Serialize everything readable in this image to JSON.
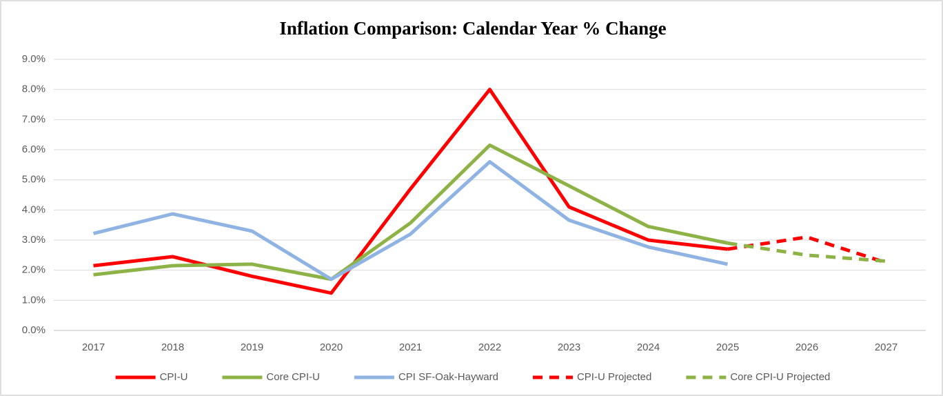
{
  "chart_data": {
    "type": "line",
    "title": "Inflation Comparison:  Calendar Year % Change",
    "categories": [
      "2017",
      "2018",
      "2019",
      "2020",
      "2021",
      "2022",
      "2023",
      "2024",
      "2025",
      "2026",
      "2027"
    ],
    "series": [
      {
        "name": "CPI-U",
        "color": "#ff0000",
        "dash": false,
        "values": [
          2.15,
          2.45,
          1.8,
          1.24,
          4.7,
          8.0,
          4.1,
          3.0,
          2.7,
          null,
          null
        ]
      },
      {
        "name": "Core CPI-U",
        "color": "#8db346",
        "dash": false,
        "values": [
          1.85,
          2.15,
          2.2,
          1.7,
          3.57,
          6.15,
          4.8,
          3.45,
          2.9,
          null,
          null
        ]
      },
      {
        "name": "CPI SF-Oak-Hayward",
        "color": "#8fb3e3",
        "dash": false,
        "values": [
          3.22,
          3.87,
          3.3,
          1.7,
          3.2,
          5.6,
          3.66,
          2.77,
          2.2,
          null,
          null
        ]
      },
      {
        "name": "CPI-U Projected",
        "color": "#ff0000",
        "dash": true,
        "values": [
          null,
          null,
          null,
          null,
          null,
          null,
          null,
          null,
          2.7,
          3.1,
          2.25
        ]
      },
      {
        "name": "Core CPI-U Projected",
        "color": "#8db346",
        "dash": true,
        "values": [
          null,
          null,
          null,
          null,
          null,
          null,
          null,
          null,
          2.9,
          2.5,
          2.3
        ]
      }
    ],
    "ylim": [
      0,
      9
    ],
    "yticks": [
      {
        "value": 0,
        "label": "0.0%"
      },
      {
        "value": 1,
        "label": "1.0%"
      },
      {
        "value": 2,
        "label": "2.0%"
      },
      {
        "value": 3,
        "label": "3.0%"
      },
      {
        "value": 4,
        "label": "4.0%"
      },
      {
        "value": 5,
        "label": "5.0%"
      },
      {
        "value": 6,
        "label": "6.0%"
      },
      {
        "value": 7,
        "label": "7.0%"
      },
      {
        "value": 8,
        "label": "8.0%"
      },
      {
        "value": 9,
        "label": "9.0%"
      }
    ],
    "grid": true,
    "legend": "bottom"
  }
}
